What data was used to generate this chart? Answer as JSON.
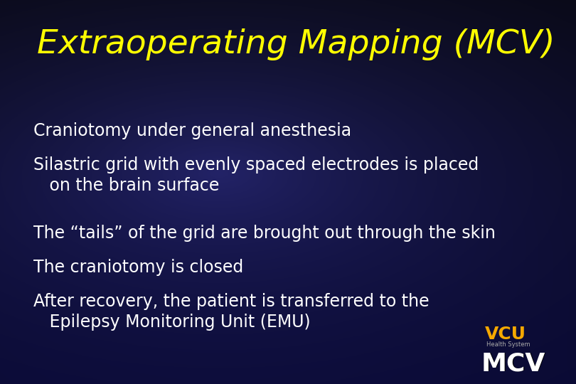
{
  "title": "Extraoperating Mapping (MCV)",
  "title_color": "#FFFF00",
  "title_fontsize": 34,
  "bullet_lines": [
    "Craniotomy under general anesthesia",
    "Silastric grid with evenly spaced electrodes is placed\n   on the brain surface",
    "The “tails” of the grid are brought out through the skin",
    "The craniotomy is closed",
    "After recovery, the patient is transferred to the\n   Epilepsy Monitoring Unit (EMU)"
  ],
  "bullet_color": "#ffffff",
  "bullet_fontsize": 17,
  "logo_vcu_color": "#f5a800",
  "logo_health_color": "#aaaaaa",
  "logo_mcv_color": "#ffffff",
  "fig_width": 8.1,
  "fig_height": 5.4,
  "dpi": 100
}
